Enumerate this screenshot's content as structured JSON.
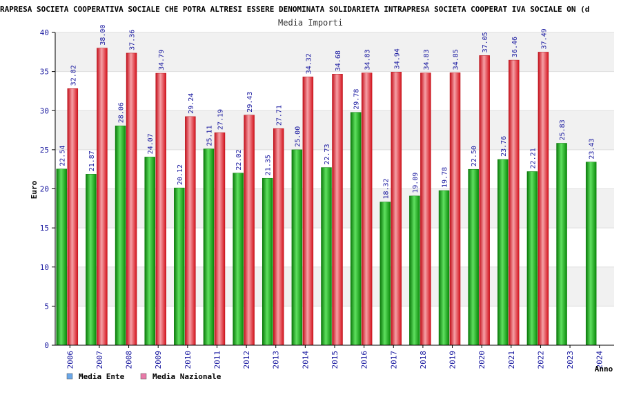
{
  "chart_data": {
    "type": "bar",
    "title": "RAPRESA SOCIETA COOPERATIVA SOCIALE CHE POTRA ALTRESI ESSERE DENOMINATA SOLIDARIETA INTRAPRESA SOCIETA COOPERAT IVA SOCIALE ON (d",
    "subtitle": "Media Importi",
    "ylabel": "Euro",
    "xlabel": "Anno",
    "ylim": [
      0,
      40
    ],
    "yticks": [
      0,
      5,
      10,
      15,
      20,
      25,
      30,
      35,
      40
    ],
    "grid": true,
    "legend_position": "bottom-left",
    "categories": [
      "2006",
      "2007",
      "2008",
      "2009",
      "2010",
      "2011",
      "2012",
      "2013",
      "2014",
      "2015",
      "2016",
      "2017",
      "2018",
      "2019",
      "2020",
      "2021",
      "2022",
      "2023",
      "2024"
    ],
    "series": [
      {
        "name": "Media Ente",
        "legend_color": "#6aa7e8",
        "color": "#11a611",
        "values": [
          22.54,
          21.87,
          28.06,
          24.07,
          20.12,
          25.11,
          22.02,
          21.35,
          25.0,
          22.73,
          29.78,
          18.32,
          19.09,
          19.78,
          22.5,
          23.76,
          22.21,
          25.83,
          23.43
        ],
        "labels": [
          "22.54",
          "21.87",
          "28.06",
          "24.07",
          "20.12",
          "25.11",
          "22.02",
          "21.35",
          "25.00",
          "22.73",
          "29.78",
          "18.32",
          "19.09",
          "19.78",
          "22.50",
          "23.76",
          "22.21",
          "25.83",
          "23.43"
        ]
      },
      {
        "name": "Media Nazionale",
        "legend_color": "#e87aa8",
        "color": "#e8202a",
        "values": [
          32.82,
          38.0,
          37.36,
          34.79,
          29.24,
          27.19,
          29.43,
          27.71,
          34.32,
          34.68,
          34.83,
          34.94,
          34.83,
          34.85,
          37.05,
          36.46,
          37.49,
          null,
          null
        ],
        "labels": [
          "32.82",
          "38.00",
          "37.36",
          "34.79",
          "29.24",
          "27.19",
          "29.43",
          "27.71",
          "34.32",
          "34.68",
          "34.83",
          "34.94",
          "34.83",
          "34.85",
          "37.05",
          "36.46",
          "37.49",
          null,
          null
        ]
      }
    ]
  }
}
